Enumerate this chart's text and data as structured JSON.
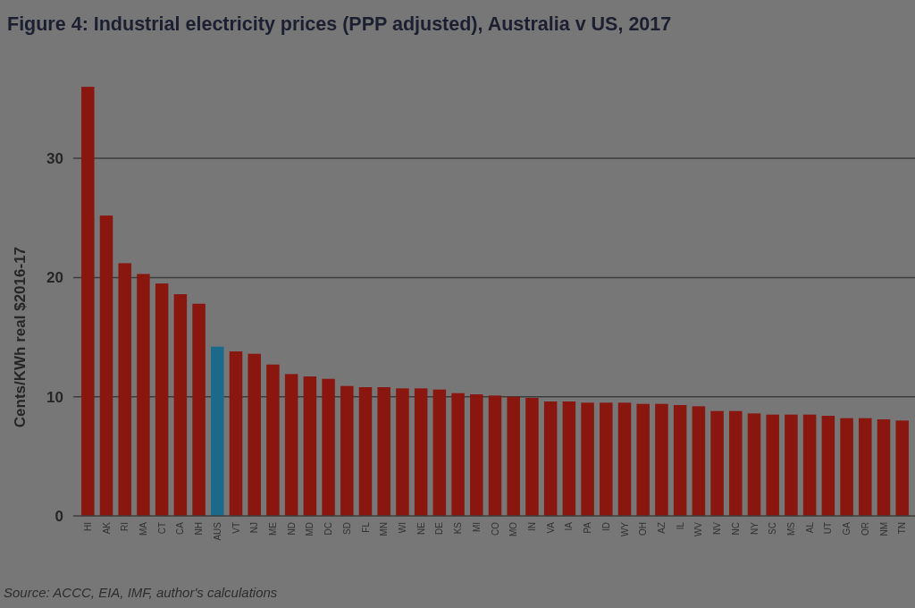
{
  "chart_data": {
    "type": "bar",
    "title": "Figure 4: Industrial electricity prices (PPP adjusted), Australia v US, 2017",
    "ylabel": "Cents/KWh real $2016-17",
    "categories": [
      "HI",
      "AK",
      "RI",
      "MA",
      "CT",
      "CA",
      "NH",
      "AUS",
      "VT",
      "NJ",
      "ME",
      "ND",
      "MD",
      "DC",
      "SD",
      "FL",
      "MN",
      "WI",
      "NE",
      "DE",
      "KS",
      "MI",
      "CO",
      "MO",
      "IN",
      "VA",
      "IA",
      "PA",
      "ID",
      "WY",
      "OH",
      "AZ",
      "IL",
      "WV",
      "NV",
      "NC",
      "NY",
      "SC",
      "MS",
      "AL",
      "UT",
      "GA",
      "OR",
      "NM",
      "TN"
    ],
    "values": [
      36.0,
      25.2,
      21.2,
      20.3,
      19.5,
      18.6,
      17.8,
      14.2,
      13.8,
      13.6,
      12.7,
      11.9,
      11.7,
      11.5,
      10.9,
      10.8,
      10.8,
      10.7,
      10.7,
      10.6,
      10.3,
      10.2,
      10.1,
      10.0,
      9.9,
      9.6,
      9.6,
      9.5,
      9.5,
      9.5,
      9.4,
      9.4,
      9.3,
      9.2,
      8.8,
      8.8,
      8.6,
      8.5,
      8.5,
      8.5,
      8.4,
      8.2,
      8.2,
      8.1,
      8.0
    ],
    "colors": [
      "#8a1610",
      "#8a1610",
      "#8a1610",
      "#8a1610",
      "#8a1610",
      "#8a1610",
      "#8a1610",
      "#1b6a8c",
      "#8a1610",
      "#8a1610",
      "#8a1610",
      "#8a1610",
      "#8a1610",
      "#8a1610",
      "#8a1610",
      "#8a1610",
      "#8a1610",
      "#8a1610",
      "#8a1610",
      "#8a1610",
      "#8a1610",
      "#8a1610",
      "#8a1610",
      "#8a1610",
      "#8a1610",
      "#8a1610",
      "#8a1610",
      "#8a1610",
      "#8a1610",
      "#8a1610",
      "#8a1610",
      "#8a1610",
      "#8a1610",
      "#8a1610",
      "#8a1610",
      "#8a1610",
      "#8a1610",
      "#8a1610",
      "#8a1610",
      "#8a1610",
      "#8a1610",
      "#8a1610",
      "#8a1610",
      "#8a1610",
      "#8a1610"
    ],
    "ylim": [
      0,
      36
    ],
    "yticks": [
      0,
      10,
      20,
      30
    ],
    "grid": "y",
    "annotations": [
      "Source: ACCC, EIA, IMF, author's calculations"
    ]
  }
}
